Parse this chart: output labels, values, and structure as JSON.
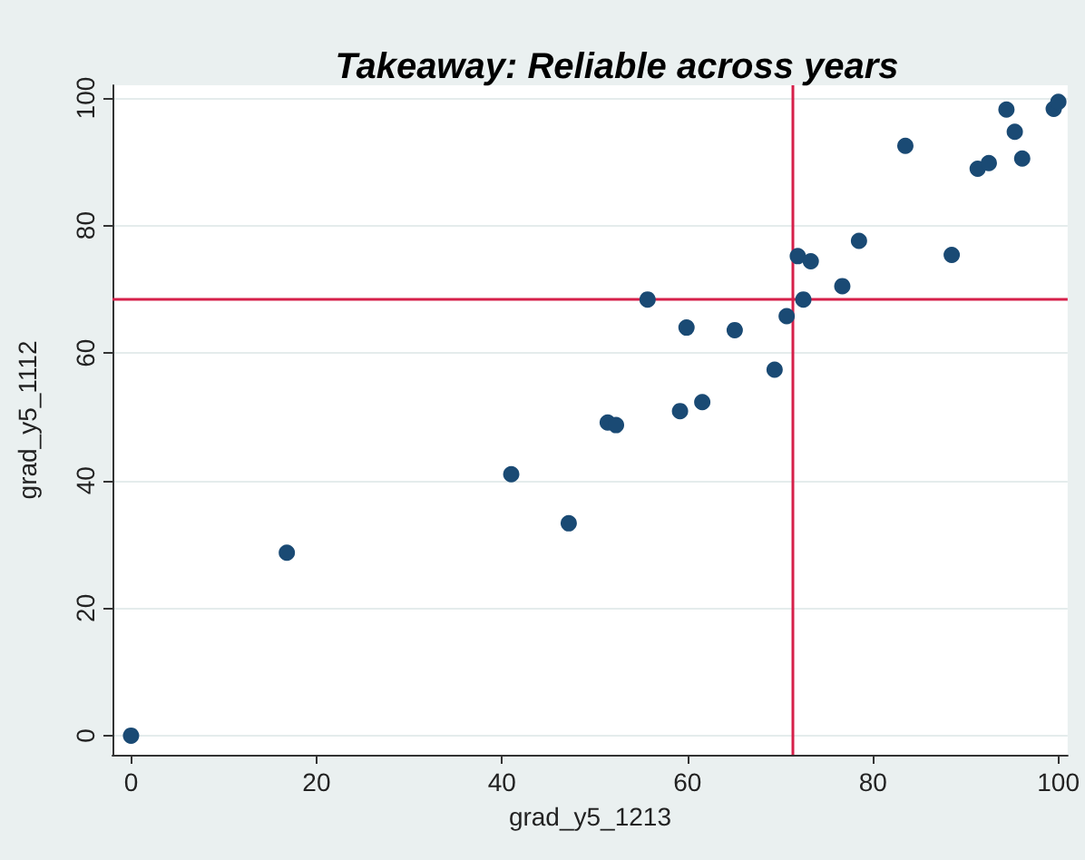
{
  "chart_data": {
    "type": "scatter",
    "title": "Takeaway: Reliable across years",
    "xlabel": "grad_y5_1213",
    "ylabel": "grad_y5_1112",
    "x": [
      0,
      16.8,
      41,
      47.2,
      51.4,
      52.3,
      59.2,
      61.6,
      69.4,
      55.7,
      59.9,
      65.1,
      70.7,
      72.5,
      71.9,
      73.3,
      76.7,
      78.5,
      88.5,
      83.5,
      91.3,
      92.5,
      96.1,
      95.3,
      94.4,
      99.5,
      100
    ],
    "series": [
      {
        "color": "#1a4a74",
        "values": [
          0,
          28.7,
          41,
          33.3,
          49.1,
          48.7,
          50.9,
          52.3,
          57.4,
          68.4,
          64,
          63.6,
          65.8,
          68.4,
          75.2,
          74.4,
          70.5,
          77.6,
          75.4,
          92.5,
          88.9,
          89.8,
          90.5,
          94.7,
          98.2,
          98.3,
          99.4
        ]
      }
    ],
    "xlim": [
      -2,
      101
    ],
    "xticks": [
      0,
      20,
      40,
      60,
      80,
      100
    ],
    "ylim": [
      -3,
      102
    ],
    "yticks": [
      0,
      20,
      40,
      60,
      80,
      100
    ],
    "ref_lines": [
      {
        "axis": "x",
        "value": 71.3,
        "color": "#d6204a"
      },
      {
        "axis": "y",
        "value": 68.4,
        "color": "#d6204a"
      }
    ],
    "grid": "y",
    "marker": "circle"
  }
}
